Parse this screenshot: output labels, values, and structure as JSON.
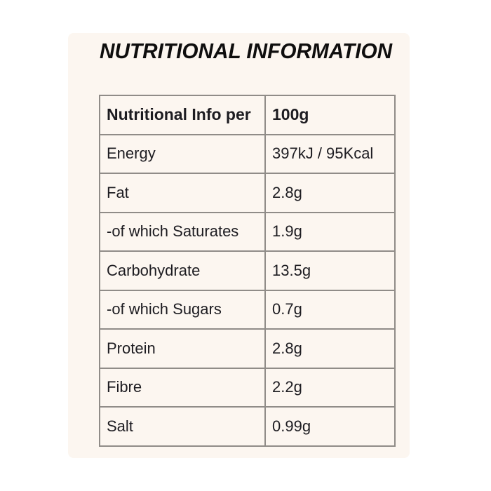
{
  "page": {
    "title": "NUTRITIONAL INFORMATION"
  },
  "colors": {
    "page_background": "#ffffff",
    "card_background": "#fcf6f0",
    "table_border": "#908c88",
    "text": "#1d1c21",
    "title_text": "#0f0e0e"
  },
  "table": {
    "header": {
      "label": "Nutritional Info per",
      "value": "100g"
    },
    "rows": [
      {
        "label": "Energy",
        "value": "397kJ / 95Kcal"
      },
      {
        "label": "Fat",
        "value": "2.8g"
      },
      {
        "label": "-of which Saturates",
        "value": "1.9g"
      },
      {
        "label": "Carbohydrate",
        "value": "13.5g"
      },
      {
        "label": "-of which Sugars",
        "value": "0.7g"
      },
      {
        "label": "Protein",
        "value": "2.8g"
      },
      {
        "label": "Fibre",
        "value": "2.2g"
      },
      {
        "label": "Salt",
        "value": "0.99g"
      }
    ]
  }
}
